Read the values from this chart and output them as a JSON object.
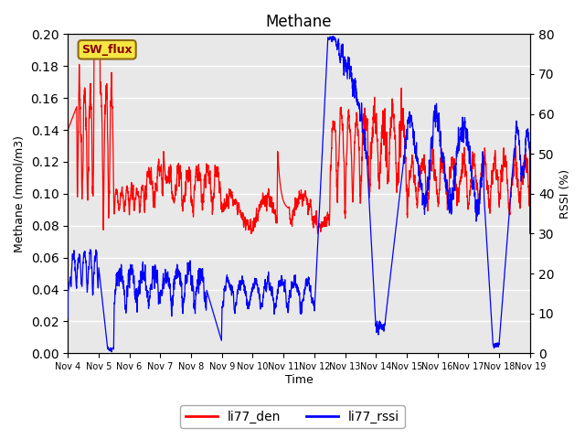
{
  "title": "Methane",
  "ylabel_left": "Methane (mmol/m3)",
  "ylabel_right": "RSSI (%)",
  "xlabel": "Time",
  "ylim_left": [
    0.0,
    0.2
  ],
  "ylim_right": [
    0,
    80
  ],
  "bg_color": "#e8e8e8",
  "fig_color": "#ffffff",
  "sw_flux_label": "SW_flux",
  "legend_entries": [
    "li77_den",
    "li77_rssi"
  ],
  "legend_colors": [
    "red",
    "blue"
  ],
  "x_labels": [
    "Nov 4",
    "Nov 5",
    "Nov 6",
    "Nov 7",
    "Nov 8",
    "Nov 9",
    "Nov 10",
    "Nov 11",
    "Nov 12",
    "Nov 13",
    "Nov 14",
    "Nov 15",
    "Nov 16",
    "Nov 17",
    "Nov 18",
    "Nov 19"
  ],
  "yticks_left": [
    0.0,
    0.02,
    0.04,
    0.06,
    0.08,
    0.1,
    0.12,
    0.14,
    0.16,
    0.18,
    0.2
  ],
  "yticks_right": [
    0,
    10,
    20,
    30,
    40,
    50,
    60,
    70,
    80
  ]
}
